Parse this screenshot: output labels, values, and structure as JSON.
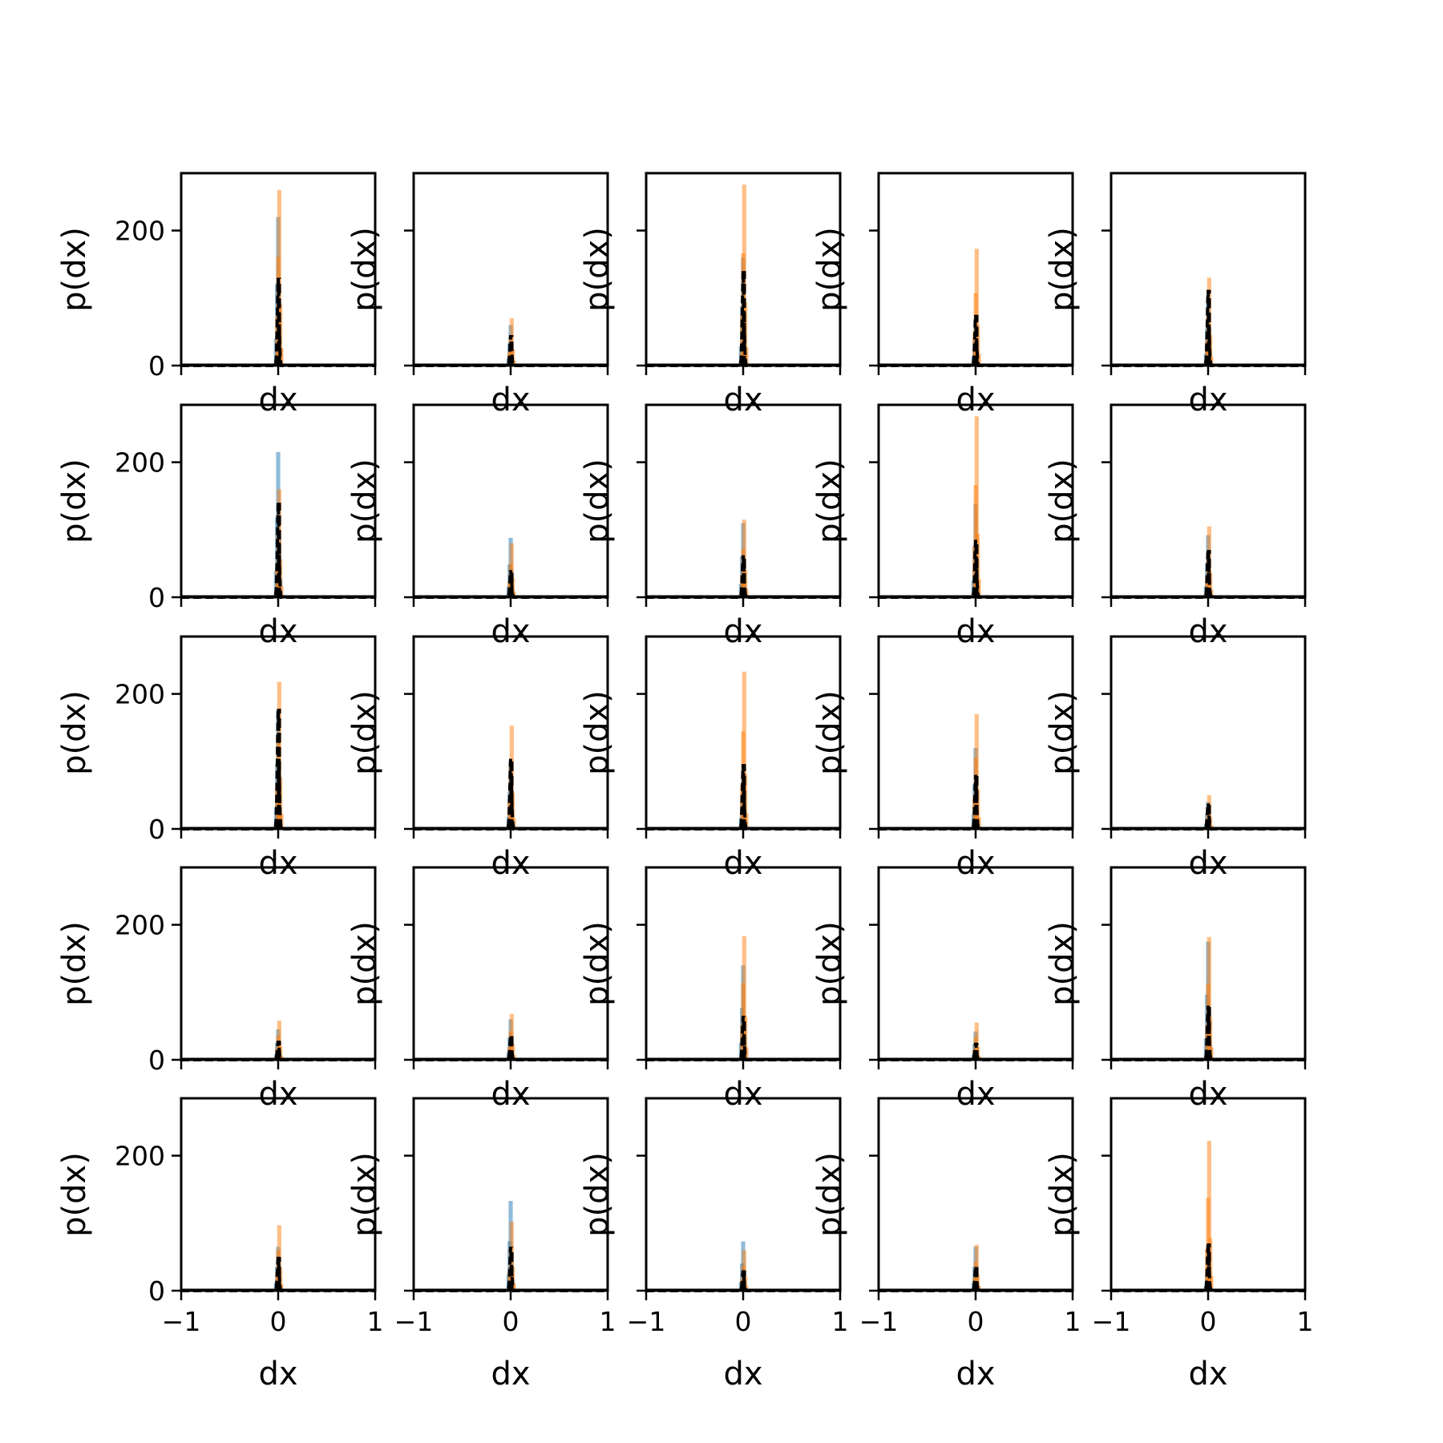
{
  "chart_data": {
    "type": "bar",
    "layout": "grid 5x5 of histograms, shared x and y axes",
    "xlabel": "dx",
    "ylabel": "p(dx)",
    "xlim": [
      -1,
      1
    ],
    "ylim": [
      0,
      285
    ],
    "xticks": [
      -1,
      0,
      1
    ],
    "xtick_labels": [
      "−1",
      "0",
      "1"
    ],
    "yticks": [
      0,
      200
    ],
    "ytick_labels": [
      "0",
      "200"
    ],
    "grid": false,
    "legend": "none",
    "colors": {
      "series_a": "#1f77b4",
      "series_b": "#ff7f0e",
      "line": "#000000"
    },
    "series_style": [
      {
        "style": "blue semi-transparent histogram"
      },
      {
        "style": "orange semi-transparent histogram"
      },
      {
        "style": "black dashed line"
      }
    ],
    "panels": [
      {
        "row": 0,
        "col": 0,
        "blue_peak": 220,
        "orange_peak": 260,
        "black_peak": 130
      },
      {
        "row": 0,
        "col": 1,
        "blue_peak": 60,
        "orange_peak": 70,
        "black_peak": 45
      },
      {
        "row": 0,
        "col": 2,
        "blue_peak": 160,
        "orange_peak": 268,
        "black_peak": 140
      },
      {
        "row": 0,
        "col": 3,
        "blue_peak": 70,
        "orange_peak": 173,
        "black_peak": 75
      },
      {
        "row": 0,
        "col": 4,
        "blue_peak": 100,
        "orange_peak": 130,
        "black_peak": 112
      },
      {
        "row": 1,
        "col": 0,
        "blue_peak": 215,
        "orange_peak": 160,
        "black_peak": 140
      },
      {
        "row": 1,
        "col": 1,
        "blue_peak": 88,
        "orange_peak": 80,
        "black_peak": 40
      },
      {
        "row": 1,
        "col": 2,
        "blue_peak": 110,
        "orange_peak": 115,
        "black_peak": 62
      },
      {
        "row": 1,
        "col": 3,
        "blue_peak": 138,
        "orange_peak": 268,
        "black_peak": 85
      },
      {
        "row": 1,
        "col": 4,
        "blue_peak": 92,
        "orange_peak": 105,
        "black_peak": 70
      },
      {
        "row": 2,
        "col": 0,
        "blue_peak": 175,
        "orange_peak": 218,
        "black_peak": 178
      },
      {
        "row": 2,
        "col": 1,
        "blue_peak": 100,
        "orange_peak": 153,
        "black_peak": 105
      },
      {
        "row": 2,
        "col": 2,
        "blue_peak": 90,
        "orange_peak": 233,
        "black_peak": 96
      },
      {
        "row": 2,
        "col": 3,
        "blue_peak": 120,
        "orange_peak": 170,
        "black_peak": 80
      },
      {
        "row": 2,
        "col": 4,
        "blue_peak": 40,
        "orange_peak": 50,
        "black_peak": 38
      },
      {
        "row": 3,
        "col": 0,
        "blue_peak": 45,
        "orange_peak": 58,
        "black_peak": 28
      },
      {
        "row": 3,
        "col": 1,
        "blue_peak": 60,
        "orange_peak": 68,
        "black_peak": 35
      },
      {
        "row": 3,
        "col": 2,
        "blue_peak": 140,
        "orange_peak": 183,
        "black_peak": 65
      },
      {
        "row": 3,
        "col": 3,
        "blue_peak": 42,
        "orange_peak": 55,
        "black_peak": 25
      },
      {
        "row": 3,
        "col": 4,
        "blue_peak": 175,
        "orange_peak": 182,
        "black_peak": 80
      },
      {
        "row": 4,
        "col": 0,
        "blue_peak": 65,
        "orange_peak": 97,
        "black_peak": 50
      },
      {
        "row": 4,
        "col": 1,
        "blue_peak": 133,
        "orange_peak": 102,
        "black_peak": 65
      },
      {
        "row": 4,
        "col": 2,
        "blue_peak": 73,
        "orange_peak": 60,
        "black_peak": 30
      },
      {
        "row": 4,
        "col": 3,
        "blue_peak": 65,
        "orange_peak": 68,
        "black_peak": 35
      },
      {
        "row": 4,
        "col": 4,
        "blue_peak": 40,
        "orange_peak": 222,
        "black_peak": 70
      }
    ]
  }
}
